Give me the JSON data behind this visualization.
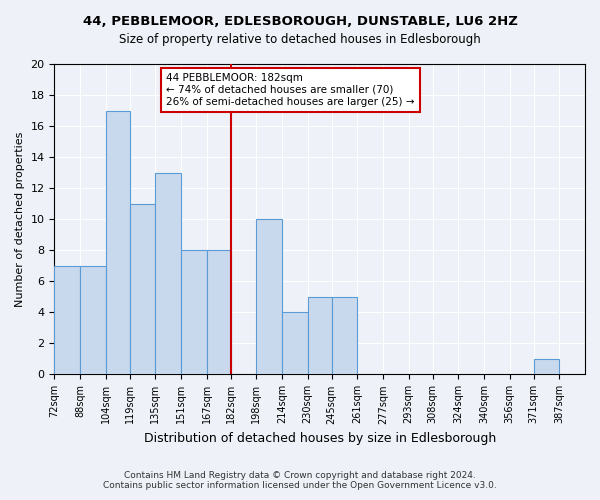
{
  "title": "44, PEBBLEMOOR, EDLESBOROUGH, DUNSTABLE, LU6 2HZ",
  "subtitle": "Size of property relative to detached houses in Edlesborough",
  "xlabel": "Distribution of detached houses by size in Edlesborough",
  "ylabel": "Number of detached properties",
  "footnote1": "Contains HM Land Registry data © Crown copyright and database right 2024.",
  "footnote2": "Contains public sector information licensed under the Open Government Licence v3.0.",
  "bin_labels": [
    "72sqm",
    "88sqm",
    "104sqm",
    "119sqm",
    "135sqm",
    "151sqm",
    "167sqm",
    "182sqm",
    "198sqm",
    "214sqm",
    "230sqm",
    "245sqm",
    "261sqm",
    "277sqm",
    "293sqm",
    "308sqm",
    "324sqm",
    "340sqm",
    "356sqm",
    "371sqm",
    "387sqm"
  ],
  "bar_values": [
    7,
    7,
    17,
    11,
    13,
    8,
    8,
    0,
    10,
    4,
    5,
    5,
    0,
    0,
    0,
    0,
    0,
    0,
    0,
    1,
    0
  ],
  "bin_edges": [
    72,
    88,
    104,
    119,
    135,
    151,
    167,
    182,
    198,
    214,
    230,
    245,
    261,
    277,
    293,
    308,
    324,
    340,
    356,
    371,
    387
  ],
  "reference_line_x": 182,
  "annotation_line1": "44 PEBBLEMOOR: 182sqm",
  "annotation_line2": "← 74% of detached houses are smaller (70)",
  "annotation_line3": "26% of semi-detached houses are larger (25) →",
  "bar_color": "#c8d9ed",
  "bar_edge_color": "#5b9bd5",
  "ref_line_color": "#cc0000",
  "annotation_box_edge_color": "#cc0000",
  "bg_color": "#eef2f8",
  "grid_color": "#ffffff",
  "ylim": [
    0,
    20
  ],
  "yticks": [
    0,
    2,
    4,
    6,
    8,
    10,
    12,
    14,
    16,
    18,
    20
  ]
}
